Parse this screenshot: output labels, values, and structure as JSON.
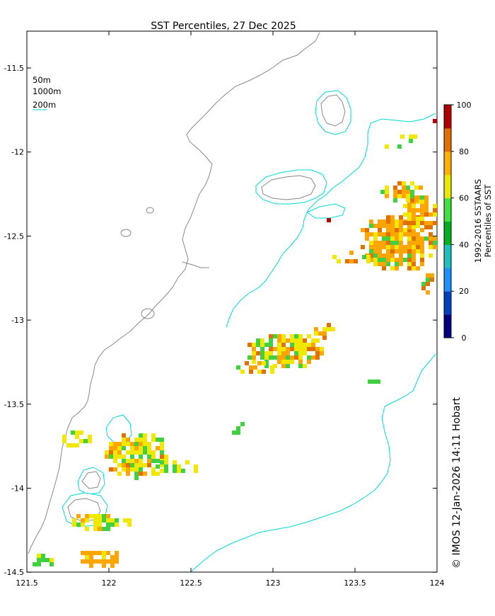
{
  "title": "SST Percentiles, 27 Dec 2025",
  "x_ticks": [
    "121.5",
    "122",
    "122.5",
    "123",
    "123.5",
    "124"
  ],
  "y_ticks": [
    "-11.5",
    "-12",
    "-12.5",
    "-13",
    "-13.5",
    "-14",
    "-14.5"
  ],
  "legend": {
    "items": [
      {
        "label": "50m",
        "color": "#000000"
      },
      {
        "label": "1000m",
        "color": "#000000"
      },
      {
        "label": "200m",
        "color": "#00cccc"
      }
    ]
  },
  "colorbar": {
    "label_line1": "1992-2016 SSTAARS",
    "label_line2": "Percentiles of SST",
    "ticks": [
      "0",
      "20",
      "40",
      "60",
      "80",
      "100"
    ],
    "colors": [
      "#000080",
      "#0040c0",
      "#1e90ff",
      "#20c0c0",
      "#00b020",
      "#40e040",
      "#e8e800",
      "#ffb000",
      "#e07000",
      "#b00000"
    ]
  },
  "credit": "© IMOS 12-Jan-2026 14:11 Hobart",
  "map_data": {
    "lon_range": [
      121.5,
      124
    ],
    "lat_range": [
      -14.5,
      -11.3
    ],
    "islands": [
      {
        "name": "",
        "lon": 123.2,
        "lat": -12.23
      },
      {
        "name": "",
        "lon": 122.0,
        "lat": -14.05
      },
      {
        "name": "",
        "lon": 123.38,
        "lat": -11.78
      }
    ]
  },
  "colors": {
    "coast": "#888888",
    "isobath_200": "#00d8d8",
    "yellow": "#f0e800",
    "orange": "#ffa500",
    "dark_orange": "#e07000",
    "green": "#40d040",
    "red": "#b00000"
  }
}
